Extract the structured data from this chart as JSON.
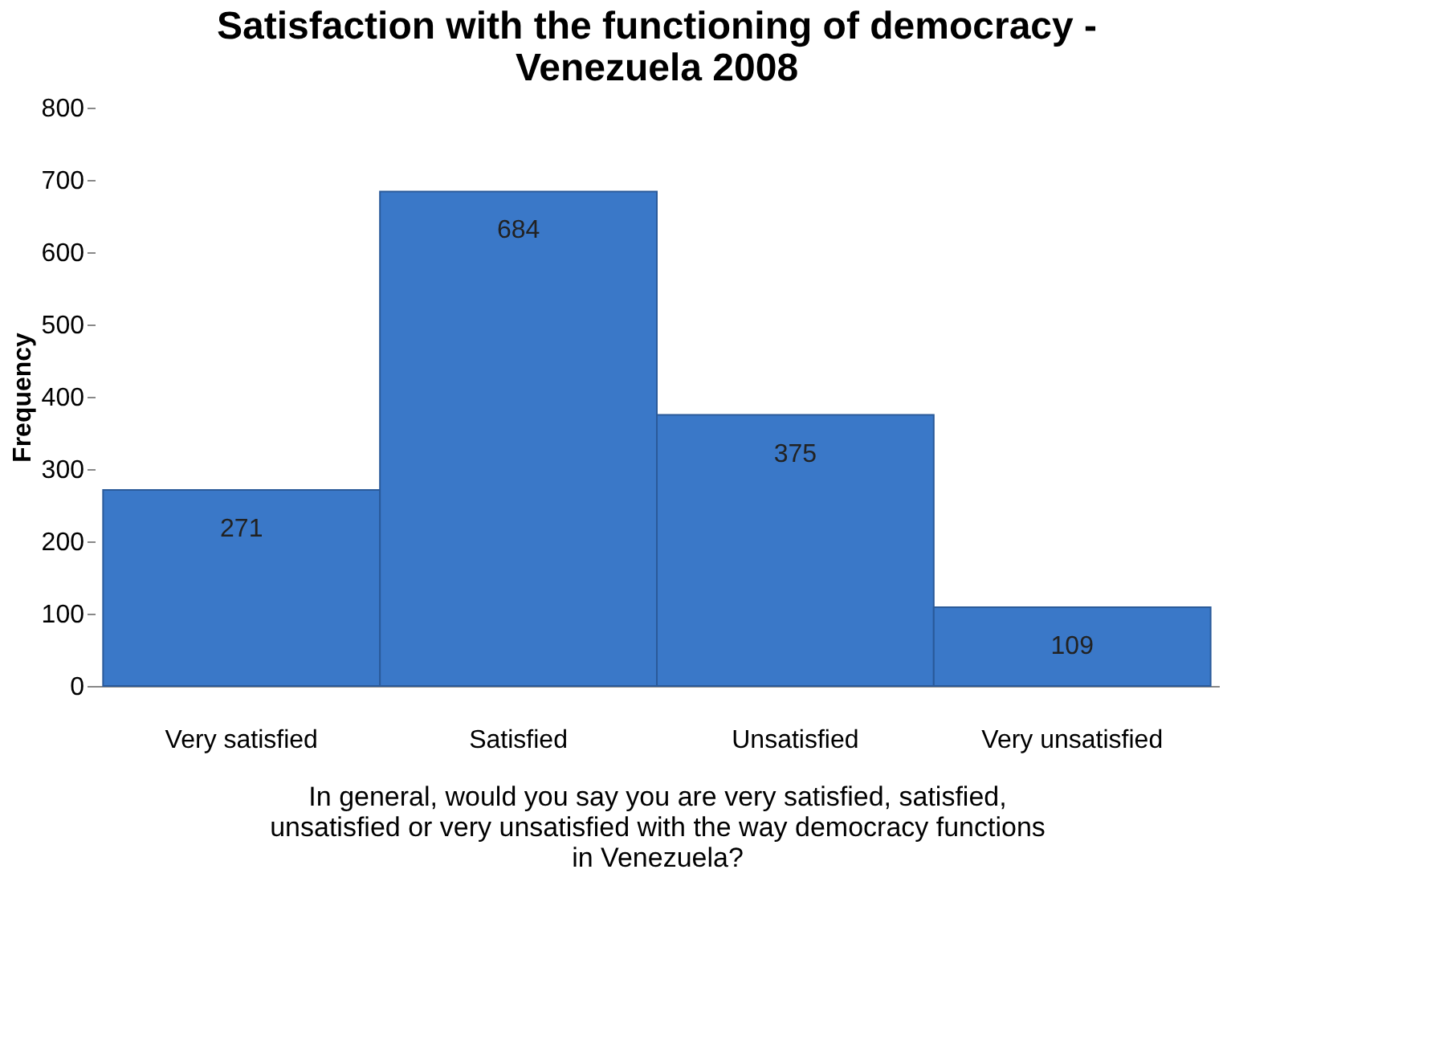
{
  "chart_data": {
    "type": "bar",
    "title": "Satisfaction with the functioning of democracy - Venezuela 2008",
    "categories": [
      "Very satisfied",
      "Satisfied",
      "Unsatisfied",
      "Very unsatisfied"
    ],
    "values": [
      271,
      684,
      375,
      109
    ],
    "color": "#3a78c8",
    "ylim": [
      0,
      800
    ],
    "yticks": [
      0,
      100,
      200,
      300,
      400,
      500,
      600,
      700,
      800
    ],
    "ylabel": "Frequency",
    "xlabel": "In general, would you say you are very satisfied, satisfied, unsatisfied or very unsatisfied with the way democracy functions in Venezuela?",
    "data_labels": true,
    "grid": false
  }
}
